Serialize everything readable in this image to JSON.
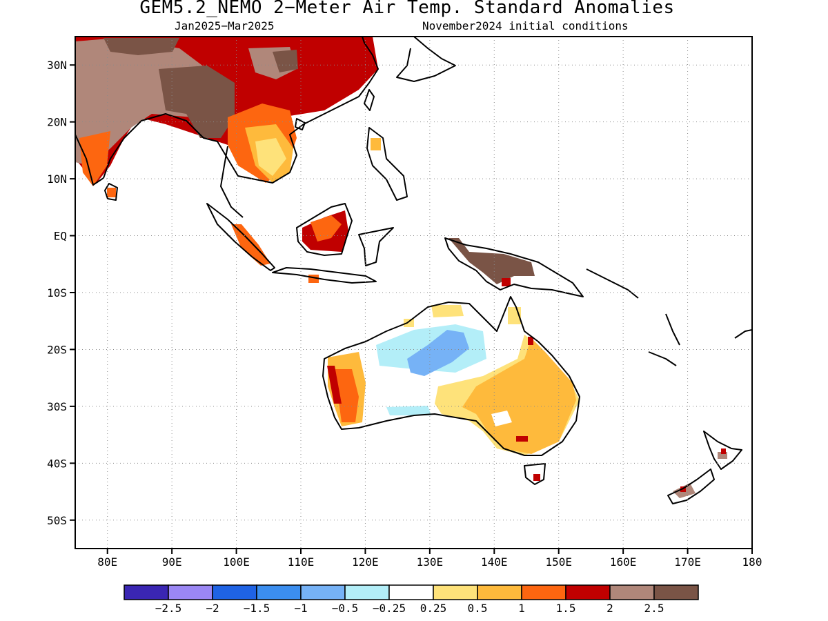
{
  "title": "GEM5.2_NEMO 2−Meter Air Temp. Standard Anomalies",
  "subtitle_left": "Jan2025−Mar2025",
  "subtitle_right": "November2024 initial conditions",
  "map": {
    "lon_range": [
      75,
      180
    ],
    "lat_range": [
      -55,
      35
    ],
    "grid": "dotted",
    "lon_ticks": [
      {
        "value": 80,
        "label": "80E"
      },
      {
        "value": 90,
        "label": "90E"
      },
      {
        "value": 100,
        "label": "100E"
      },
      {
        "value": 110,
        "label": "110E"
      },
      {
        "value": 120,
        "label": "120E"
      },
      {
        "value": 130,
        "label": "130E"
      },
      {
        "value": 140,
        "label": "140E"
      },
      {
        "value": 150,
        "label": "150E"
      },
      {
        "value": 160,
        "label": "160E"
      },
      {
        "value": 170,
        "label": "170E"
      },
      {
        "value": 180,
        "label": "180"
      }
    ],
    "lat_ticks": [
      {
        "value": 30,
        "label": "30N"
      },
      {
        "value": 20,
        "label": "20N"
      },
      {
        "value": 10,
        "label": "10N"
      },
      {
        "value": 0,
        "label": "EQ"
      },
      {
        "value": -10,
        "label": "10S"
      },
      {
        "value": -20,
        "label": "20S"
      },
      {
        "value": -30,
        "label": "30S"
      },
      {
        "value": -40,
        "label": "40S"
      },
      {
        "value": -50,
        "label": "50S"
      }
    ]
  },
  "legend": {
    "colors": [
      "#3a26b3",
      "#9b87f4",
      "#1f63e4",
      "#3b8eef",
      "#76b2f6",
      "#b3eef8",
      "#ffffff",
      "#fee27a",
      "#feba3c",
      "#fd6610",
      "#c00000",
      "#b0877a",
      "#7a5446"
    ],
    "labels": [
      "−2.5",
      "−2",
      "−1.5",
      "−1",
      "−0.5",
      "−0.25",
      "0.25",
      "0.5",
      "1",
      "1.5",
      "2",
      "2.5"
    ]
  }
}
